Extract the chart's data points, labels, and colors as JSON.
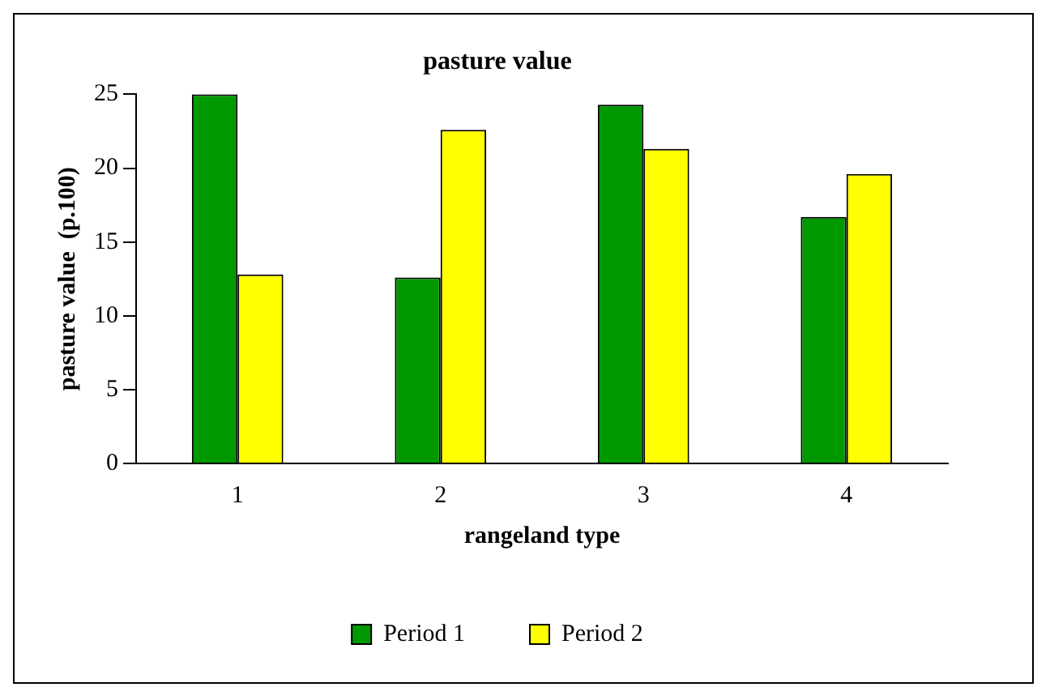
{
  "chart_data": {
    "type": "bar",
    "title": "pasture value",
    "xlabel": "rangeland type",
    "ylabel": "pasture value  (p.100)",
    "categories": [
      "1",
      "2",
      "3",
      "4"
    ],
    "series": [
      {
        "name": "Period 1",
        "color": "#009900",
        "values": [
          25,
          12.6,
          24.3,
          16.7
        ]
      },
      {
        "name": "Period 2",
        "color": "#ffff00",
        "values": [
          12.8,
          22.6,
          21.3,
          19.6
        ]
      }
    ],
    "ylim": [
      0,
      25
    ],
    "yticks": [
      0,
      5,
      10,
      15,
      20,
      25
    ],
    "grid": false,
    "legend": "bottom"
  }
}
